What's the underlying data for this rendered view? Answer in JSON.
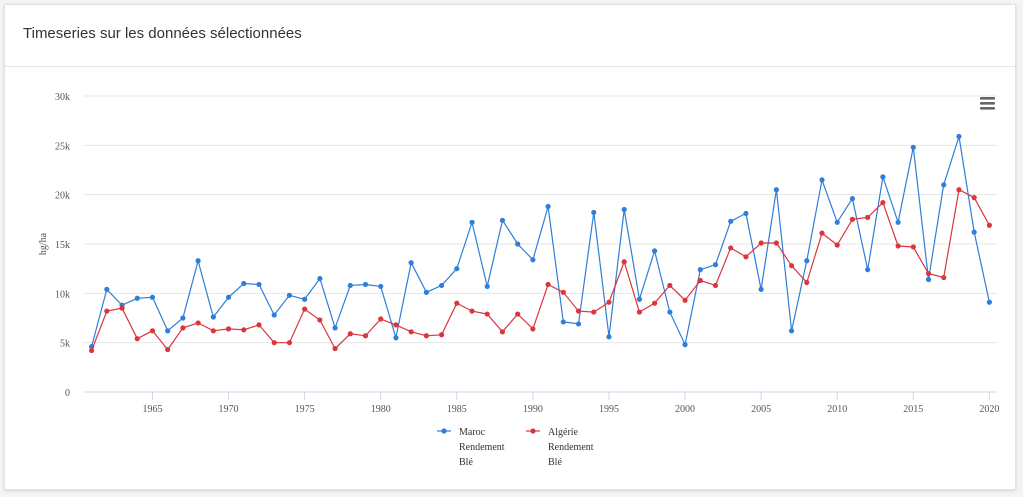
{
  "card": {
    "title": "Timeseries sur les données sélectionnées"
  },
  "icons": {
    "menu": "hamburger-menu-icon"
  },
  "colors": {
    "maroc": "#2f7ed8",
    "algerie": "#d9363e",
    "grid": "#e6e6e6",
    "axis": "#ccd6eb",
    "text": "#555555"
  },
  "chart_data": {
    "type": "line",
    "title": "",
    "xlabel": "",
    "ylabel": "hg/ha",
    "xlim": [
      1961,
      2020
    ],
    "ylim": [
      0,
      30000
    ],
    "y_ticks": [
      0,
      5000,
      10000,
      15000,
      20000,
      25000,
      30000
    ],
    "y_tick_labels": [
      "0",
      "5k",
      "10k",
      "15k",
      "20k",
      "25k",
      "30k"
    ],
    "x_ticks": [
      1965,
      1970,
      1975,
      1980,
      1985,
      1990,
      1995,
      2000,
      2005,
      2010,
      2015,
      2020
    ],
    "x_tick_labels": [
      "1965",
      "1970",
      "1975",
      "1980",
      "1985",
      "1990",
      "1995",
      "2000",
      "2005",
      "2010",
      "2015",
      "2020"
    ],
    "grid": true,
    "legend_position": "bottom-center",
    "x": [
      1961,
      1962,
      1963,
      1964,
      1965,
      1966,
      1967,
      1968,
      1969,
      1970,
      1971,
      1972,
      1973,
      1974,
      1975,
      1976,
      1977,
      1978,
      1979,
      1980,
      1981,
      1982,
      1983,
      1984,
      1985,
      1986,
      1987,
      1988,
      1989,
      1990,
      1991,
      1992,
      1993,
      1994,
      1995,
      1996,
      1997,
      1998,
      1999,
      2000,
      2001,
      2002,
      2003,
      2004,
      2005,
      2006,
      2007,
      2008,
      2009,
      2010,
      2011,
      2012,
      2013,
      2014,
      2015,
      2016,
      2017,
      2018,
      2019,
      2020
    ],
    "series": [
      {
        "name": "Maroc Rendement Blé",
        "legend_lines": [
          "Maroc",
          "Rendement",
          "Blé"
        ],
        "color": "#2f7ed8",
        "values": [
          4600,
          10400,
          8800,
          9500,
          9600,
          6200,
          7500,
          13300,
          7600,
          9600,
          11000,
          10900,
          7800,
          9800,
          9400,
          11500,
          6500,
          10800,
          10900,
          10700,
          5500,
          13100,
          10100,
          10800,
          12500,
          17200,
          10700,
          17400,
          15000,
          13400,
          18800,
          7100,
          6900,
          18200,
          5600,
          18500,
          9400,
          14300,
          8100,
          4800,
          12400,
          12900,
          17300,
          18100,
          10400,
          20500,
          6200,
          13300,
          21500,
          17200,
          19600,
          12400,
          21800,
          17200,
          24800,
          11400,
          21000,
          25900,
          16200,
          9100
        ]
      },
      {
        "name": "Algérie Rendement Blé",
        "legend_lines": [
          "Algérie",
          "Rendement",
          "Blé"
        ],
        "color": "#d9363e",
        "values": [
          4200,
          8200,
          8500,
          5400,
          6200,
          4300,
          6500,
          7000,
          6200,
          6400,
          6300,
          6800,
          5000,
          5000,
          8400,
          7300,
          4400,
          5900,
          5700,
          7400,
          6800,
          6100,
          5700,
          5800,
          9000,
          8200,
          7900,
          6100,
          7900,
          6400,
          10900,
          10100,
          8200,
          8100,
          9100,
          13200,
          8100,
          9000,
          10800,
          9300,
          11300,
          10800,
          14600,
          13700,
          15100,
          15100,
          12800,
          11100,
          16100,
          14900,
          17500,
          17700,
          19200,
          14800,
          14700,
          12000,
          11600,
          20500,
          19700,
          16900
        ]
      }
    ]
  }
}
